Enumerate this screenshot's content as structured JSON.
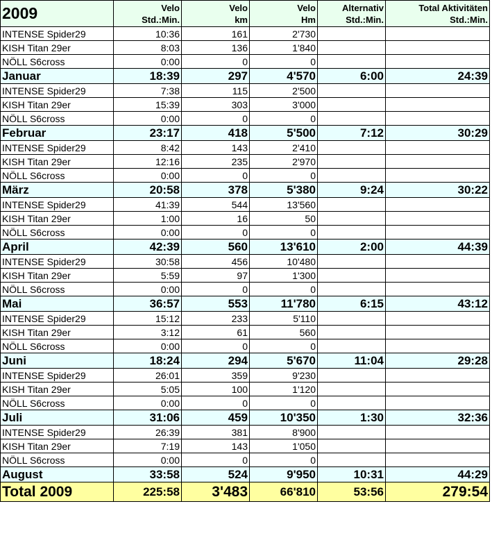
{
  "header": {
    "year": "2009",
    "columns": [
      {
        "line1": "Velo",
        "line2": "Std.:Min."
      },
      {
        "line1": "Velo",
        "line2": "km"
      },
      {
        "line1": "Velo",
        "line2": "Hm"
      },
      {
        "line1": "Alternativ",
        "line2": "Std.:Min."
      },
      {
        "line1": "Total Aktivitäten",
        "line2": "Std.:Min."
      }
    ]
  },
  "rows": [
    {
      "type": "bike",
      "name": "INTENSE Spider29",
      "time": "10:36",
      "km": "161",
      "hm": "2'730",
      "alt": "",
      "total": ""
    },
    {
      "type": "bike",
      "name": "KISH Titan 29er",
      "time": "8:03",
      "km": "136",
      "hm": "1'840",
      "alt": "",
      "total": ""
    },
    {
      "type": "bike",
      "name": "NÖLL S6cross",
      "time": "0:00",
      "km": "0",
      "hm": "0",
      "alt": "",
      "total": ""
    },
    {
      "type": "month",
      "name": "Januar",
      "time": "18:39",
      "km": "297",
      "hm": "4'570",
      "alt": "6:00",
      "total": "24:39"
    },
    {
      "type": "bike",
      "name": "INTENSE Spider29",
      "time": "7:38",
      "km": "115",
      "hm": "2'500",
      "alt": "",
      "total": ""
    },
    {
      "type": "bike",
      "name": "KISH Titan 29er",
      "time": "15:39",
      "km": "303",
      "hm": "3'000",
      "alt": "",
      "total": ""
    },
    {
      "type": "bike",
      "name": "NÖLL S6cross",
      "time": "0:00",
      "km": "0",
      "hm": "0",
      "alt": "",
      "total": ""
    },
    {
      "type": "month",
      "name": "Februar",
      "time": "23:17",
      "km": "418",
      "hm": "5'500",
      "alt": "7:12",
      "total": "30:29"
    },
    {
      "type": "bike",
      "name": "INTENSE Spider29",
      "time": "8:42",
      "km": "143",
      "hm": "2'410",
      "alt": "",
      "total": ""
    },
    {
      "type": "bike",
      "name": "KISH Titan 29er",
      "time": "12:16",
      "km": "235",
      "hm": "2'970",
      "alt": "",
      "total": ""
    },
    {
      "type": "bike",
      "name": "NÖLL S6cross",
      "time": "0:00",
      "km": "0",
      "hm": "0",
      "alt": "",
      "total": ""
    },
    {
      "type": "month",
      "name": "März",
      "time": "20:58",
      "km": "378",
      "hm": "5'380",
      "alt": "9:24",
      "total": "30:22"
    },
    {
      "type": "bike",
      "name": "INTENSE Spider29",
      "time": "41:39",
      "km": "544",
      "hm": "13'560",
      "alt": "",
      "total": ""
    },
    {
      "type": "bike",
      "name": "KISH Titan 29er",
      "time": "1:00",
      "km": "16",
      "hm": "50",
      "alt": "",
      "total": ""
    },
    {
      "type": "bike",
      "name": "NÖLL S6cross",
      "time": "0:00",
      "km": "0",
      "hm": "0",
      "alt": "",
      "total": ""
    },
    {
      "type": "month",
      "name": "April",
      "time": "42:39",
      "km": "560",
      "hm": "13'610",
      "alt": "2:00",
      "total": "44:39"
    },
    {
      "type": "bike",
      "name": "INTENSE Spider29",
      "time": "30:58",
      "km": "456",
      "hm": "10'480",
      "alt": "",
      "total": ""
    },
    {
      "type": "bike",
      "name": "KISH Titan 29er",
      "time": "5:59",
      "km": "97",
      "hm": "1'300",
      "alt": "",
      "total": ""
    },
    {
      "type": "bike",
      "name": "NÖLL S6cross",
      "time": "0:00",
      "km": "0",
      "hm": "0",
      "alt": "",
      "total": ""
    },
    {
      "type": "month",
      "name": "Mai",
      "time": "36:57",
      "km": "553",
      "hm": "11'780",
      "alt": "6:15",
      "total": "43:12"
    },
    {
      "type": "bike",
      "name": "INTENSE Spider29",
      "time": "15:12",
      "km": "233",
      "hm": "5'110",
      "alt": "",
      "total": ""
    },
    {
      "type": "bike",
      "name": "KISH Titan 29er",
      "time": "3:12",
      "km": "61",
      "hm": "560",
      "alt": "",
      "total": ""
    },
    {
      "type": "bike",
      "name": "NÖLL S6cross",
      "time": "0:00",
      "km": "0",
      "hm": "0",
      "alt": "",
      "total": ""
    },
    {
      "type": "month",
      "name": "Juni",
      "time": "18:24",
      "km": "294",
      "hm": "5'670",
      "alt": "11:04",
      "total": "29:28"
    },
    {
      "type": "bike",
      "name": "INTENSE Spider29",
      "time": "26:01",
      "km": "359",
      "hm": "9'230",
      "alt": "",
      "total": ""
    },
    {
      "type": "bike",
      "name": "KISH Titan 29er",
      "time": "5:05",
      "km": "100",
      "hm": "1'120",
      "alt": "",
      "total": ""
    },
    {
      "type": "bike",
      "name": "NÖLL S6cross",
      "time": "0:00",
      "km": "0",
      "hm": "0",
      "alt": "",
      "total": ""
    },
    {
      "type": "month",
      "name": "Juli",
      "time": "31:06",
      "km": "459",
      "hm": "10'350",
      "alt": "1:30",
      "total": "32:36"
    },
    {
      "type": "bike",
      "name": "INTENSE Spider29",
      "time": "26:39",
      "km": "381",
      "hm": "8'900",
      "alt": "",
      "total": ""
    },
    {
      "type": "bike",
      "name": "KISH Titan 29er",
      "time": "7:19",
      "km": "143",
      "hm": "1'050",
      "alt": "",
      "total": ""
    },
    {
      "type": "bike",
      "name": "NÖLL S6cross",
      "time": "0:00",
      "km": "0",
      "hm": "0",
      "alt": "",
      "total": ""
    },
    {
      "type": "month",
      "name": "August",
      "time": "33:58",
      "km": "524",
      "hm": "9'950",
      "alt": "10:31",
      "total": "44:29"
    }
  ],
  "total": {
    "name": "Total 2009",
    "time": "225:58",
    "km": "3'483",
    "hm": "66'810",
    "alt": "53:56",
    "total": "279:54"
  },
  "colors": {
    "header_bg": "#e9ffee",
    "month_bg": "#e8ffff",
    "total_bg": "#ffffa0",
    "grid": "#000000"
  }
}
